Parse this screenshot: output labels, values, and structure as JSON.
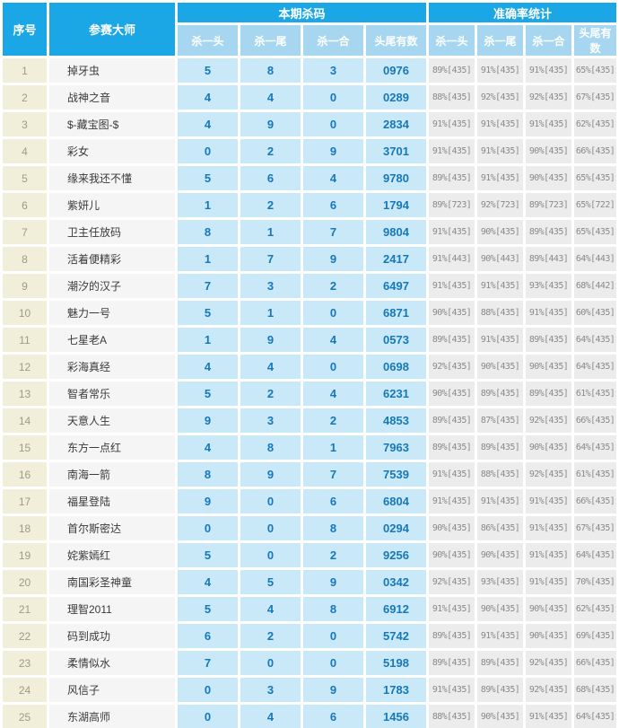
{
  "header": {
    "serial": "序号",
    "master": "参赛大师",
    "group_current_kill": "本期杀码",
    "group_accuracy": "准确率统计",
    "sub": [
      "杀一头",
      "杀一尾",
      "杀一合",
      "头尾有数",
      "杀一头",
      "杀一尾",
      "杀一合",
      "头尾有数"
    ]
  },
  "colors": {
    "header_blue": "#1ba7e6",
    "subheader_blue": "#a7d7f0",
    "serial_bg": "#f1eeda",
    "master_bg": "#f5f5f5",
    "kill_bg": "#c9e8f8",
    "kill_text": "#1778b8",
    "accuracy_bg": "#ececec",
    "accuracy_text": "#8a8a8a"
  },
  "rows": [
    [
      "1",
      "掉牙虫",
      "5",
      "8",
      "3",
      "0976",
      "89%[435]",
      "91%[435]",
      "91%[435]",
      "65%[435]"
    ],
    [
      "2",
      "战神之音",
      "4",
      "4",
      "0",
      "0289",
      "88%[435]",
      "92%[435]",
      "92%[435]",
      "67%[435]"
    ],
    [
      "3",
      "$-藏宝图-$",
      "4",
      "9",
      "0",
      "2834",
      "91%[435]",
      "91%[435]",
      "91%[435]",
      "62%[435]"
    ],
    [
      "4",
      "彩女",
      "0",
      "2",
      "9",
      "3701",
      "91%[435]",
      "91%[435]",
      "90%[435]",
      "66%[435]"
    ],
    [
      "5",
      "缘来我还不懂",
      "5",
      "6",
      "4",
      "9780",
      "89%[435]",
      "91%[435]",
      "90%[435]",
      "65%[435]"
    ],
    [
      "6",
      "紫妍儿",
      "1",
      "2",
      "6",
      "1794",
      "89%[723]",
      "92%[723]",
      "89%[723]",
      "65%[722]"
    ],
    [
      "7",
      "卫主任放码",
      "8",
      "1",
      "7",
      "9804",
      "91%[435]",
      "90%[435]",
      "89%[435]",
      "65%[435]"
    ],
    [
      "8",
      "活着便精彩",
      "1",
      "7",
      "9",
      "2417",
      "91%[443]",
      "90%[443]",
      "89%[443]",
      "64%[443]"
    ],
    [
      "9",
      "潮汐的汉子",
      "7",
      "3",
      "2",
      "6497",
      "91%[435]",
      "91%[435]",
      "93%[435]",
      "68%[442]"
    ],
    [
      "10",
      "魅力一号",
      "5",
      "1",
      "0",
      "6871",
      "90%[435]",
      "88%[435]",
      "91%[435]",
      "60%[435]"
    ],
    [
      "11",
      "七星老A",
      "1",
      "9",
      "4",
      "0573",
      "89%[435]",
      "91%[435]",
      "89%[435]",
      "64%[435]"
    ],
    [
      "12",
      "彩海真经",
      "4",
      "4",
      "0",
      "0698",
      "92%[435]",
      "90%[435]",
      "90%[435]",
      "64%[435]"
    ],
    [
      "13",
      "智者常乐",
      "5",
      "2",
      "4",
      "6231",
      "90%[435]",
      "89%[435]",
      "89%[435]",
      "61%[435]"
    ],
    [
      "14",
      "天意人生",
      "9",
      "3",
      "2",
      "4853",
      "89%[435]",
      "87%[435]",
      "92%[435]",
      "66%[435]"
    ],
    [
      "15",
      "东方一点红",
      "4",
      "8",
      "1",
      "7963",
      "89%[435]",
      "89%[435]",
      "90%[435]",
      "64%[435]"
    ],
    [
      "16",
      "南海一箭",
      "8",
      "9",
      "7",
      "7539",
      "91%[435]",
      "88%[435]",
      "92%[435]",
      "61%[435]"
    ],
    [
      "17",
      "福星登陆",
      "9",
      "0",
      "6",
      "6804",
      "91%[435]",
      "91%[435]",
      "91%[435]",
      "66%[435]"
    ],
    [
      "18",
      "首尔斯密达",
      "0",
      "0",
      "8",
      "0294",
      "90%[435]",
      "86%[435]",
      "91%[435]",
      "67%[435]"
    ],
    [
      "19",
      "姹紫嫣红",
      "5",
      "0",
      "2",
      "9256",
      "90%[435]",
      "90%[435]",
      "91%[435]",
      "64%[435]"
    ],
    [
      "20",
      "南国彩圣神童",
      "4",
      "5",
      "9",
      "0342",
      "92%[435]",
      "93%[435]",
      "91%[435]",
      "70%[435]"
    ],
    [
      "21",
      "理智2011",
      "5",
      "4",
      "8",
      "6912",
      "91%[435]",
      "90%[435]",
      "90%[435]",
      "62%[435]"
    ],
    [
      "22",
      "码到成功",
      "6",
      "2",
      "0",
      "5742",
      "89%[435]",
      "91%[435]",
      "90%[435]",
      "69%[435]"
    ],
    [
      "23",
      "柔情似水",
      "7",
      "0",
      "0",
      "5198",
      "89%[435]",
      "89%[435]",
      "92%[435]",
      "66%[435]"
    ],
    [
      "24",
      "风信子",
      "0",
      "3",
      "9",
      "1783",
      "91%[435]",
      "89%[435]",
      "92%[435]",
      "68%[435]"
    ],
    [
      "25",
      "东湖高师",
      "0",
      "4",
      "6",
      "1456",
      "88%[435]",
      "90%[435]",
      "91%[435]",
      "64%[435]"
    ]
  ]
}
